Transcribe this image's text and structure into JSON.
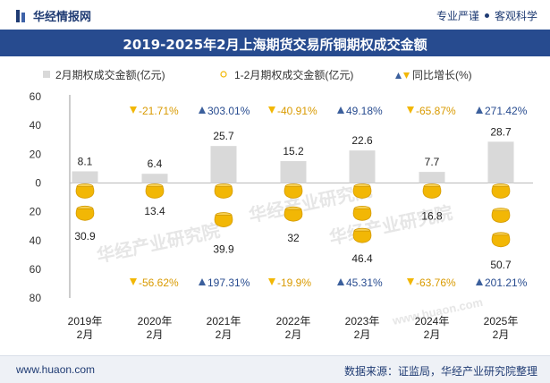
{
  "header": {
    "brand": "华经情报网",
    "slogan_left": "专业严谨",
    "slogan_right": "客观科学"
  },
  "footer": {
    "website": "www.huaon.com",
    "source": "数据来源：证监局，华经产业研究院整理"
  },
  "watermarks": [
    "华经产业研究院",
    "华经产业研究院",
    "华经产业研究院",
    "www.huaon.com"
  ],
  "colors": {
    "header_bg": "#274b8f",
    "bar": "#d9d9d9",
    "coin": "#f2b705",
    "up": "#3b5f9c",
    "down": "#f2b705"
  },
  "chart_data": {
    "type": "bar",
    "title": "2019-2025年2月上海期货交易所铜期权成交金额",
    "categories": [
      "2019年\n2月",
      "2020年\n2月",
      "2021年\n2月",
      "2022年\n2月",
      "2023年\n2月",
      "2024年\n2月",
      "2025年\n2月"
    ],
    "series": [
      {
        "name": "2月期权成交金额(亿元)",
        "values": [
          8.1,
          6.4,
          25.7,
          15.2,
          22.6,
          7.7,
          28.7
        ],
        "direction": "up"
      },
      {
        "name": "1-2月期权成交金额(亿元)",
        "values": [
          30.9,
          13.4,
          39.9,
          32,
          46.4,
          16.8,
          50.7
        ],
        "direction": "down"
      }
    ],
    "growth_legend": "同比增长(%)",
    "growth_2m": [
      {
        "text": "",
        "dir": ""
      },
      {
        "text": "-21.71%",
        "dir": "down"
      },
      {
        "text": "303.01%",
        "dir": "up"
      },
      {
        "text": "-40.91%",
        "dir": "down"
      },
      {
        "text": "49.18%",
        "dir": "up"
      },
      {
        "text": "-65.87%",
        "dir": "down"
      },
      {
        "text": "271.42%",
        "dir": "up"
      }
    ],
    "growth_1_2m": [
      {
        "text": "",
        "dir": ""
      },
      {
        "text": "-56.62%",
        "dir": "down"
      },
      {
        "text": "197.31%",
        "dir": "up"
      },
      {
        "text": "-19.9%",
        "dir": "down"
      },
      {
        "text": "45.31%",
        "dir": "up"
      },
      {
        "text": "-63.76%",
        "dir": "down"
      },
      {
        "text": "201.21%",
        "dir": "up"
      }
    ],
    "yticks_up": [
      0,
      20,
      40,
      60
    ],
    "yticks_down": [
      20,
      40,
      60,
      80
    ],
    "ylim_up": [
      0,
      60
    ],
    "ylim_down": [
      0,
      80
    ],
    "legend_position": "top",
    "grid": false
  }
}
